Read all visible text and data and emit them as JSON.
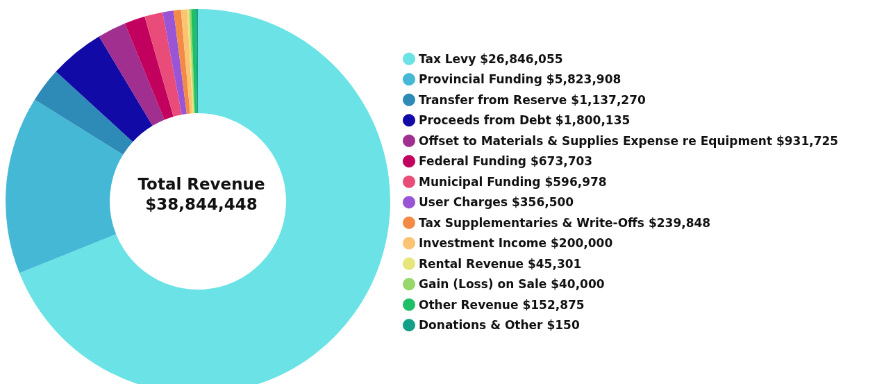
{
  "chart_data": {
    "type": "donut",
    "title": "Total Revenue",
    "subtitle": "$38,844,448",
    "categories": [
      "Tax Levy",
      "Provincial Funding",
      "Transfer from Reserve",
      "Proceeds from Debt",
      "Offset to Materials & Supplies Expense re Equipment",
      "Federal Funding",
      "Municipal Funding",
      "User Charges",
      "Tax Supplementaries & Write-Offs",
      "Investment Income",
      "Rental Revenue",
      "Gain (Loss) on Sale",
      "Other Revenue",
      "Donations & Other"
    ],
    "values": [
      26846055,
      5823908,
      1137270,
      1800135,
      931725,
      673703,
      596978,
      356500,
      239848,
      200000,
      45301,
      40000,
      152875,
      150
    ],
    "value_labels": [
      "$26,846,055",
      "$5,823,908",
      "$1,137,270",
      "$1,800,135",
      "$931,725",
      "$673,703",
      "$596,978",
      "$356,500",
      "$239,848",
      "$200,000",
      "$45,301",
      "$40,000",
      "$152,875",
      "$150"
    ],
    "colors": [
      "#6ae2e6",
      "#45b8d6",
      "#2e8bb8",
      "#120aa6",
      "#a02f8f",
      "#c2005d",
      "#ea4c7a",
      "#9a55d6",
      "#f38a45",
      "#fcc472",
      "#e6e67a",
      "#98d86a",
      "#1fbf67",
      "#12a086"
    ],
    "legend": "right"
  }
}
